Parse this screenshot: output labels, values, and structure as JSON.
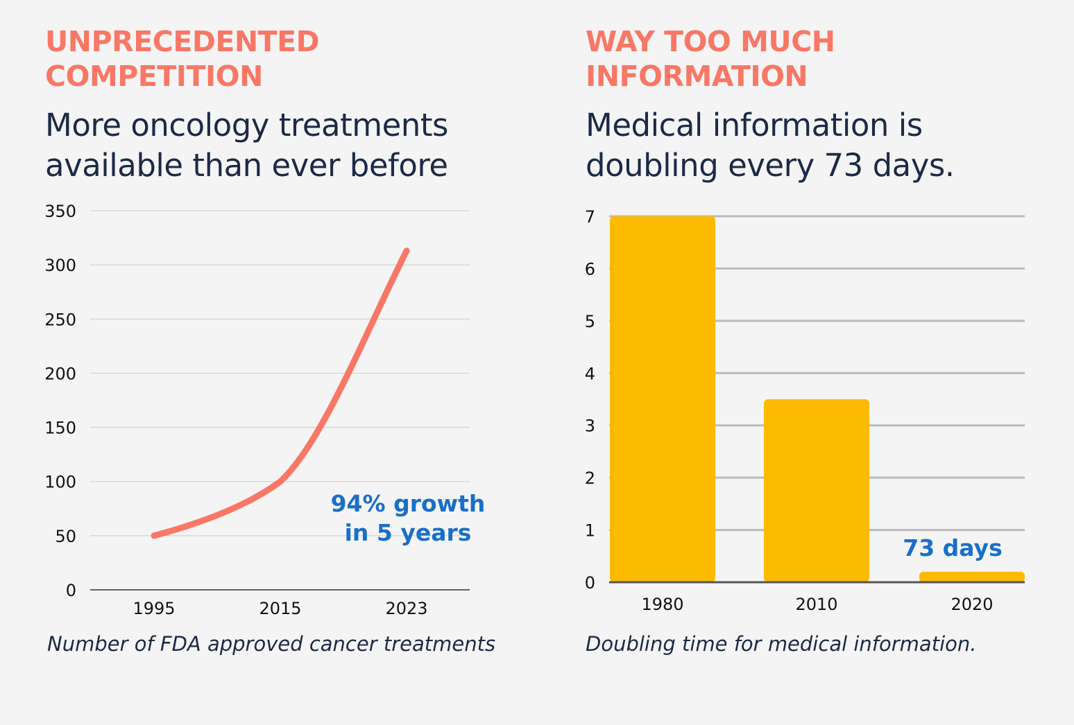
{
  "left": {
    "kicker": [
      "UNPRECEDENTED",
      "COMPETITION"
    ],
    "headline": [
      "More oncology treatments",
      "available than ever before"
    ],
    "caption": "Number of FDA approved cancer treatments"
  },
  "right": {
    "kicker": [
      "WAY TOO MUCH",
      "INFORMATION"
    ],
    "headline": [
      "Medical information is",
      "doubling every 73 days."
    ],
    "caption": "Doubling time for medical information."
  },
  "chart_data": [
    {
      "type": "line",
      "categories": [
        "1995",
        "2015",
        "2023"
      ],
      "y_ticks": [
        "0",
        "50",
        "100",
        "150",
        "200",
        "250",
        "300",
        "350"
      ],
      "ylim": [
        0,
        350
      ],
      "grid": true,
      "series": [
        {
          "values": [
            50,
            100,
            313
          ],
          "color": "#f87766"
        }
      ],
      "annotation": [
        "94% growth",
        "in 5 years"
      ],
      "annotation_color": "#1a6fc7"
    },
    {
      "type": "bar",
      "categories": [
        "1980",
        "2010",
        "2020"
      ],
      "y_ticks": [
        "0",
        "1",
        "2",
        "3",
        "4",
        "5",
        "6",
        "7"
      ],
      "ylim": [
        0,
        7
      ],
      "grid": true,
      "series": [
        {
          "values": [
            7,
            3.5,
            0.2
          ],
          "color": "#fcba00"
        }
      ],
      "annotation": "73 days",
      "annotation_color": "#1a6fc7"
    }
  ]
}
